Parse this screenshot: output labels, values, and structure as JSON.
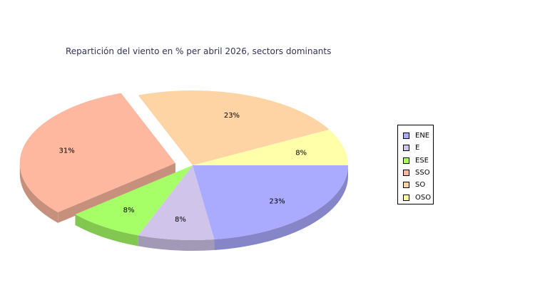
{
  "chart_title": "Repartición del viento en % per abril 2026, sectors dominants",
  "chart_data": {
    "type": "pie",
    "title": "Repartición del viento en % per abril 2026, sectors dominants",
    "legend_position": "right",
    "labels": [
      "ENE",
      "E",
      "ESE",
      "SSO",
      "SO",
      "OSO"
    ],
    "values": [
      23,
      8,
      8,
      31,
      23,
      8
    ],
    "value_labels": [
      "23%",
      "8%",
      "8%",
      "31%",
      "23%",
      "8%"
    ],
    "exploded": [
      "SSO"
    ],
    "colors": [
      "#aaaaff",
      "#d0c4ea",
      "#a6ff66",
      "#ffb8a0",
      "#ffd4a4",
      "#ffffaa"
    ]
  },
  "legend": [
    {
      "label": "ENE",
      "color": "#aaaaff"
    },
    {
      "label": "E",
      "color": "#d0c4ea"
    },
    {
      "label": "ESE",
      "color": "#a6ff66"
    },
    {
      "label": "SSO",
      "color": "#ffb8a0"
    },
    {
      "label": "SO",
      "color": "#ffd4a4"
    },
    {
      "label": "OSO",
      "color": "#ffffaa"
    }
  ]
}
